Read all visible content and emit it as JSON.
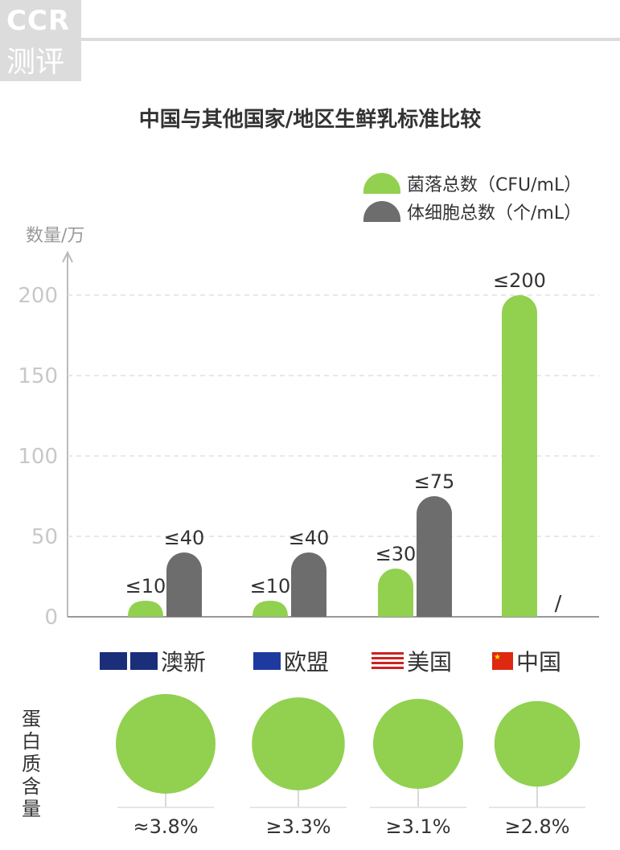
{
  "logo": {
    "line1": "CCR",
    "line2": "测评"
  },
  "chart_data": {
    "type": "bar",
    "title": "中国与其他国家/地区生鲜乳标准比较",
    "ylabel": "数量/万",
    "ylim": [
      0,
      200
    ],
    "yticks": [
      "0",
      "50",
      "100",
      "150",
      "200"
    ],
    "grid": true,
    "legend_position": "top-right",
    "categories": [
      "澳新",
      "欧盟",
      "美国",
      "中国"
    ],
    "series": [
      {
        "name": "菌落总数（CFU/mL）",
        "color": "#92d050",
        "values": [
          10,
          10,
          30,
          200
        ],
        "labels": [
          "≤10",
          "≤10",
          "≤30",
          "≤200"
        ]
      },
      {
        "name": "体细胞总数（个/mL）",
        "color": "#6d6d6d",
        "values": [
          40,
          40,
          75,
          null
        ],
        "labels": [
          "≤40",
          "≤40",
          "≤75",
          "/"
        ]
      }
    ],
    "protein": {
      "label": "蛋白质含量",
      "values": [
        3.8,
        3.3,
        3.1,
        2.8
      ],
      "labels": [
        "≈3.8%",
        "≥3.3%",
        "≥3.1%",
        "≥2.8%"
      ]
    }
  }
}
